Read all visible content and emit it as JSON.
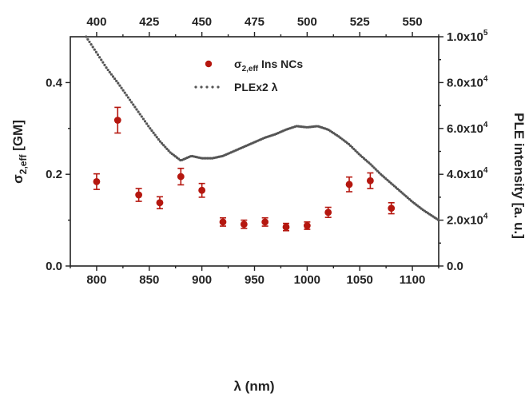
{
  "chart_data": {
    "type": "scatter",
    "xlabel": "λ (nm)",
    "x_top_label": "",
    "ylabel_left": "σ2,eff [GM]",
    "ylabel_left_parts": {
      "base": "σ",
      "sub": "2,eff",
      "unit": " [GM]"
    },
    "ylabel_right": "PLE intensity [a. u.]",
    "xlim": [
      775,
      1125
    ],
    "ylim_left": [
      0,
      0.5
    ],
    "ylim_right": [
      0,
      100000
    ],
    "x_top_lim": [
      387.5,
      562.5
    ],
    "x_ticks": [
      "800",
      "850",
      "900",
      "950",
      "1000",
      "1050",
      "1100"
    ],
    "x_top_ticks": [
      "400",
      "425",
      "450",
      "475",
      "500",
      "525",
      "550"
    ],
    "y_left_ticks": [
      "0.0",
      "0.2",
      "0.4"
    ],
    "y_right_ticks": [
      {
        "mant": "0.0",
        "exp": ""
      },
      {
        "mant": "2.0x10",
        "exp": "4"
      },
      {
        "mant": "4.0x10",
        "exp": "4"
      },
      {
        "mant": "6.0x10",
        "exp": "4"
      },
      {
        "mant": "8.0x10",
        "exp": "4"
      },
      {
        "mant": "1.0x10",
        "exp": "5"
      }
    ],
    "legend": {
      "position": "top-center",
      "entries": [
        {
          "label": "σ2,eff Ins NCs",
          "base": "σ",
          "sub": "2,eff",
          "rest": " Ins NCs",
          "marker": "circle"
        },
        {
          "label": "PLEx2 λ",
          "marker": "dots"
        }
      ]
    },
    "series": [
      {
        "name": "σ2,eff Ins NCs",
        "axis": "left",
        "color": "#b5170f",
        "x": [
          800,
          820,
          840,
          860,
          880,
          900,
          920,
          940,
          960,
          980,
          1000,
          1020,
          1040,
          1060,
          1080
        ],
        "y": [
          0.184,
          0.318,
          0.155,
          0.138,
          0.195,
          0.165,
          0.096,
          0.091,
          0.096,
          0.085,
          0.088,
          0.117,
          0.178,
          0.186,
          0.126
        ],
        "err": [
          0.017,
          0.028,
          0.014,
          0.013,
          0.018,
          0.015,
          0.009,
          0.009,
          0.009,
          0.008,
          0.008,
          0.011,
          0.016,
          0.017,
          0.012
        ]
      },
      {
        "name": "PLEx2 λ",
        "axis": "right",
        "color": "#555555",
        "x": [
          790,
          800,
          810,
          820,
          830,
          840,
          850,
          860,
          870,
          880,
          890,
          900,
          910,
          920,
          930,
          940,
          950,
          960,
          970,
          980,
          990,
          1000,
          1010,
          1020,
          1030,
          1040,
          1050,
          1060,
          1070,
          1080,
          1090,
          1100,
          1110,
          1120,
          1125
        ],
        "y": [
          100000,
          93000,
          86000,
          80000,
          73500,
          67000,
          60500,
          54500,
          49500,
          46000,
          48000,
          47000,
          47000,
          48000,
          50000,
          52000,
          54000,
          56000,
          57500,
          59500,
          61000,
          60500,
          61000,
          59500,
          56500,
          53000,
          48500,
          44500,
          40000,
          36000,
          32000,
          28000,
          24500,
          21500,
          20000
        ]
      }
    ]
  }
}
